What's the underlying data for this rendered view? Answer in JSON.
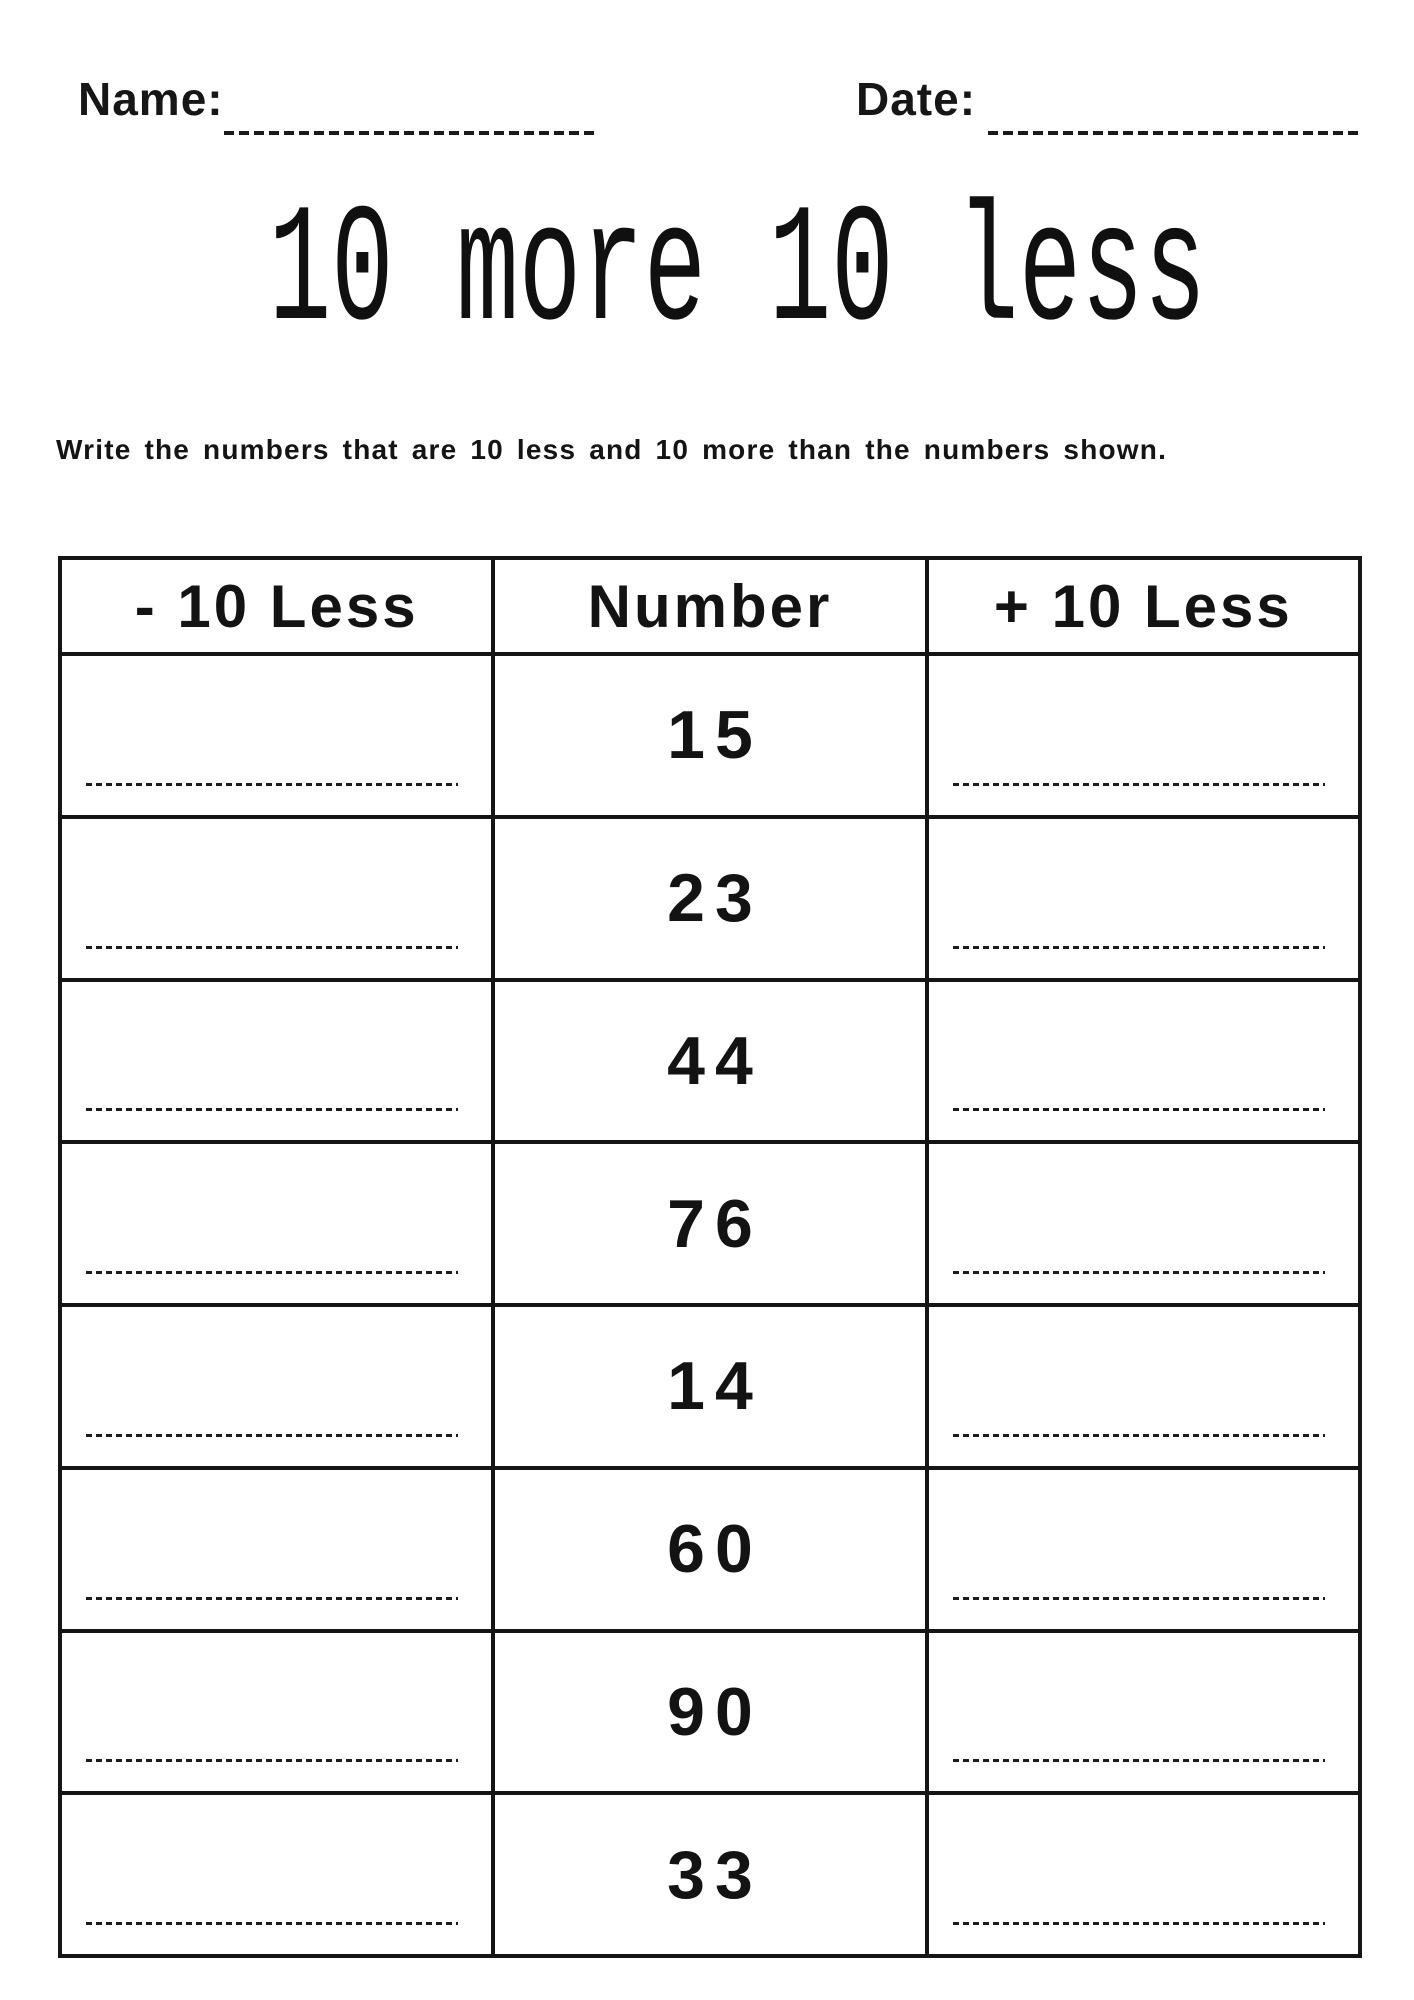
{
  "colors": {
    "ink": "#121212",
    "paper": "#ffffff"
  },
  "header": {
    "name_label": "Name:",
    "date_label": "Date:"
  },
  "title": "10 more 10 less",
  "instruction": "Write the numbers that are 10 less and 10 more than the numbers shown.",
  "table": {
    "headers": [
      "- 10 Less",
      "Number",
      "+ 10 Less"
    ],
    "rows": [
      {
        "number": "15"
      },
      {
        "number": "23"
      },
      {
        "number": "44"
      },
      {
        "number": "76"
      },
      {
        "number": "14"
      },
      {
        "number": "60"
      },
      {
        "number": "90"
      },
      {
        "number": "33"
      }
    ]
  }
}
